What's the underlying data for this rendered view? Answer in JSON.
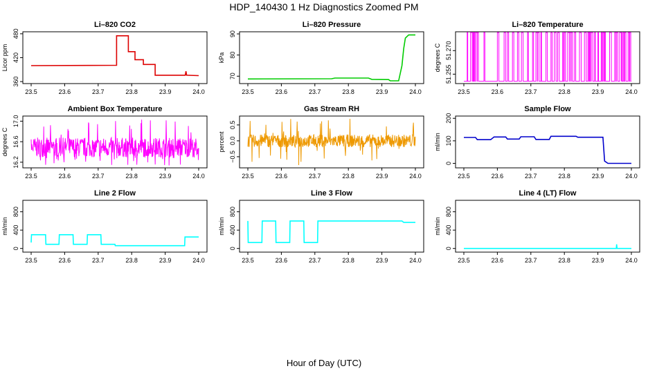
{
  "figure": {
    "title": "HDP_140430  1 Hz Diagnostics Zoomed PM",
    "xlabel": "Hour of Day (UTC)"
  },
  "chart_data": [
    {
      "type": "line",
      "title": "Li–820 CO2",
      "ylabel": "Licor ppm",
      "color": "#dd0000",
      "xlim": [
        23.5,
        24.0
      ],
      "ylim": [
        355,
        485
      ],
      "x_ticks": [
        "23.5",
        "23.6",
        "23.7",
        "23.8",
        "23.9",
        "24.0"
      ],
      "y_ticks": [
        360,
        420,
        480
      ],
      "x": [
        23.5,
        23.755,
        23.755,
        23.79,
        23.79,
        23.81,
        23.81,
        23.835,
        23.835,
        23.87,
        23.87,
        23.96,
        23.962,
        23.964,
        24.0
      ],
      "y": [
        400,
        401,
        475,
        475,
        435,
        435,
        415,
        415,
        403,
        403,
        376,
        376,
        386,
        376,
        375
      ]
    },
    {
      "type": "line",
      "title": "Li–820 Pressure",
      "ylabel": "kPa",
      "color": "#00cc00",
      "xlim": [
        23.5,
        24.0
      ],
      "ylim": [
        66.5,
        91
      ],
      "x_ticks": [
        "23.5",
        "23.6",
        "23.7",
        "23.8",
        "23.9",
        "24.0"
      ],
      "y_ticks": [
        70,
        80,
        90
      ],
      "x": [
        23.5,
        23.75,
        23.76,
        23.86,
        23.87,
        23.92,
        23.925,
        23.95,
        23.96,
        23.965,
        23.97,
        23.98,
        24.0
      ],
      "y": [
        68.7,
        68.8,
        69.1,
        69.1,
        68.5,
        68.4,
        67.8,
        67.8,
        75,
        83,
        88,
        89.5,
        89.5
      ]
    },
    {
      "type": "line",
      "title": "Li–820 Temperature",
      "ylabel": "degrees C",
      "color": "#ff00ff",
      "xlim": [
        23.5,
        24.0
      ],
      "ylim": [
        51.249,
        51.282
      ],
      "x_ticks": [
        "23.5",
        "23.6",
        "23.7",
        "23.8",
        "23.9",
        "24.0"
      ],
      "y_ticks": [
        51.255,
        51.27
      ],
      "y_tick_labels": [
        "51.255",
        "51.270"
      ],
      "levels": [
        51.2505,
        51.2815
      ],
      "spike_x": [
        23.51,
        23.52,
        23.525,
        23.53,
        23.535,
        23.54,
        23.56,
        23.6,
        23.62,
        23.63,
        23.645,
        23.66,
        23.672,
        23.69,
        23.705,
        23.715,
        23.72,
        23.73,
        23.745,
        23.76,
        23.77,
        23.78,
        23.795,
        23.8,
        23.81,
        23.815,
        23.82,
        23.83,
        23.845,
        23.86,
        23.87,
        23.875,
        23.88,
        23.89,
        23.9,
        23.91,
        23.915,
        23.92,
        23.935,
        23.95,
        23.955,
        23.965,
        23.97,
        23.975,
        23.98,
        23.99,
        23.995
      ]
    },
    {
      "type": "line",
      "title": "Ambient Box Temperature",
      "ylabel": "degrees C",
      "color": "#ff00ff",
      "xlim": [
        23.5,
        24.0
      ],
      "ylim": [
        16.09,
        17.1
      ],
      "x_ticks": [
        "23.5",
        "23.6",
        "23.7",
        "23.8",
        "23.9",
        "24.0"
      ],
      "y_ticks": [
        16.2,
        16.6,
        17.0
      ],
      "y_tick_labels": [
        "16.2",
        "16.6",
        "17.0"
      ],
      "band": {
        "low": 16.3,
        "mid": 16.47,
        "high": 16.68,
        "min": 16.13,
        "max": 17.06
      }
    },
    {
      "type": "line",
      "title": "Gas Stream RH",
      "ylabel": "percent",
      "color": "#ee9900",
      "xlim": [
        23.5,
        24.0
      ],
      "ylim": [
        -0.85,
        0.78
      ],
      "x_ticks": [
        "23.5",
        "23.6",
        "23.7",
        "23.8",
        "23.9",
        "24.0"
      ],
      "y_ticks": [
        -0.5,
        0,
        0.5
      ],
      "y_tick_labels": [
        "−0.5",
        "0.0",
        "0.5"
      ],
      "band": {
        "low": -0.2,
        "mid": 0.0,
        "high": 0.2,
        "min": -0.8,
        "max": 0.7
      }
    },
    {
      "type": "line",
      "title": "Sample Flow",
      "ylabel": "ml/min",
      "color": "#0000cc",
      "xlim": [
        23.5,
        24.0
      ],
      "ylim": [
        -20,
        210
      ],
      "x_ticks": [
        "23.5",
        "23.6",
        "23.7",
        "23.8",
        "23.9",
        "24.0"
      ],
      "y_ticks": [
        0,
        100,
        200
      ],
      "x": [
        23.5,
        23.535,
        23.54,
        23.58,
        23.59,
        23.625,
        23.63,
        23.665,
        23.67,
        23.71,
        23.715,
        23.755,
        23.76,
        23.835,
        23.84,
        23.915,
        23.92,
        23.93,
        24.0
      ],
      "y": [
        115,
        115,
        105,
        105,
        117,
        117,
        108,
        108,
        118,
        118,
        106,
        106,
        120,
        120,
        116,
        116,
        10,
        0,
        0
      ]
    },
    {
      "type": "line",
      "title": "Line 2 Flow",
      "ylabel": "ml/min",
      "color": "#00ffff",
      "xlim": [
        23.5,
        24.0
      ],
      "ylim": [
        -80,
        1050
      ],
      "x_ticks": [
        "23.5",
        "23.6",
        "23.7",
        "23.8",
        "23.9",
        "24.0"
      ],
      "y_ticks": [
        0,
        400,
        800
      ],
      "x": [
        23.5,
        23.501,
        23.543,
        23.544,
        23.583,
        23.584,
        23.625,
        23.626,
        23.667,
        23.668,
        23.708,
        23.709,
        23.75,
        23.751,
        23.958,
        23.959,
        24.0
      ],
      "y": [
        130,
        300,
        300,
        90,
        90,
        300,
        300,
        90,
        90,
        300,
        300,
        90,
        90,
        60,
        60,
        250,
        250
      ]
    },
    {
      "type": "line",
      "title": "Line 3 Flow",
      "ylabel": "ml/min",
      "color": "#00ffff",
      "xlim": [
        23.5,
        24.0
      ],
      "ylim": [
        -80,
        1050
      ],
      "x_ticks": [
        "23.5",
        "23.6",
        "23.7",
        "23.8",
        "23.9",
        "24.0"
      ],
      "y_ticks": [
        0,
        400,
        800
      ],
      "x": [
        23.5,
        23.501,
        23.502,
        23.542,
        23.543,
        23.583,
        23.584,
        23.625,
        23.626,
        23.667,
        23.668,
        23.708,
        23.709,
        23.96,
        23.965,
        24.0
      ],
      "y": [
        600,
        130,
        130,
        130,
        600,
        600,
        130,
        130,
        600,
        600,
        130,
        130,
        600,
        600,
        570,
        570
      ]
    },
    {
      "type": "line",
      "title": "Line 4 (LT) Flow",
      "ylabel": "ml/min",
      "color": "#00ffff",
      "xlim": [
        23.5,
        24.0
      ],
      "ylim": [
        -80,
        1050
      ],
      "x_ticks": [
        "23.5",
        "23.6",
        "23.7",
        "23.8",
        "23.9",
        "24.0"
      ],
      "y_ticks": [
        0,
        400,
        800
      ],
      "x": [
        23.5,
        23.955,
        23.956,
        23.957,
        23.958,
        24.0
      ],
      "y": [
        0,
        0,
        90,
        10,
        0,
        0
      ]
    }
  ]
}
